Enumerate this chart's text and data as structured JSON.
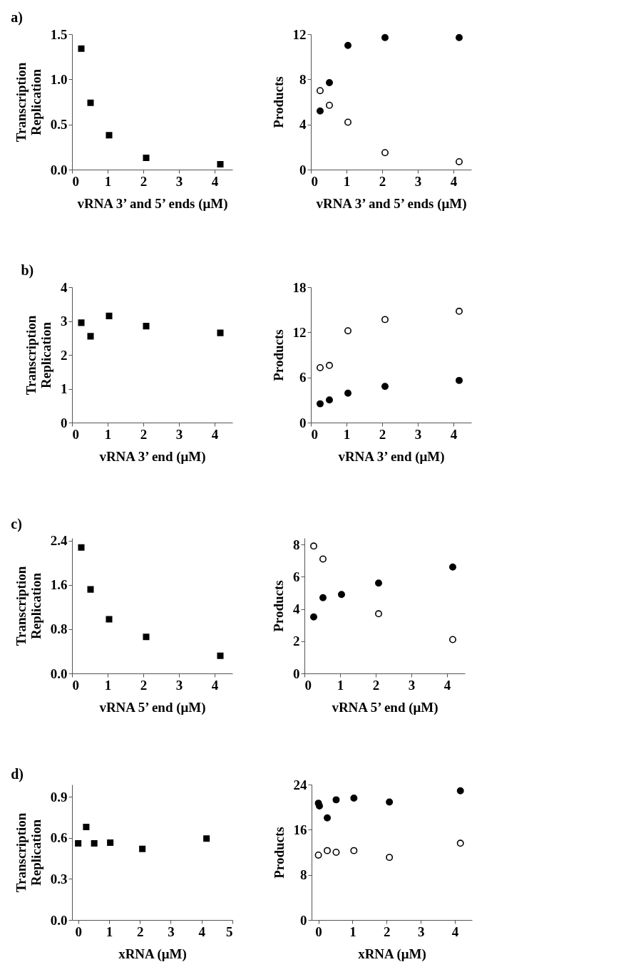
{
  "chart_data": [
    {
      "type": "scatter",
      "title": "a)",
      "xlabel": "vRNA 3’ and 5’ ends (μM)",
      "ylabel": "Transcription\nReplication",
      "marker": "square",
      "grid": false,
      "xlim": [
        0,
        4.5
      ],
      "xticks": [
        0,
        1,
        2,
        3,
        4
      ],
      "ylim": [
        0,
        1.5
      ],
      "yticks": [
        {
          "value": 0,
          "label": "0.0"
        },
        {
          "value": 0.5,
          "label": "0.5"
        },
        {
          "value": 1,
          "label": "1.0"
        },
        {
          "value": 1.5,
          "label": "1.5"
        }
      ],
      "x": [
        0.26,
        0.52,
        1.04,
        2.08,
        4.16
      ],
      "series": [
        {
          "color": "#000000",
          "values": [
            1.34,
            0.74,
            0.38,
            0.13,
            0.06
          ]
        }
      ]
    },
    {
      "type": "scatter",
      "xlabel": "vRNA 3’ and 5’ ends (μM)",
      "ylabel": "Products",
      "marker": "circle",
      "grid": false,
      "xlim": [
        0,
        4.5
      ],
      "xticks": [
        0,
        1,
        2,
        3,
        4
      ],
      "ylim": [
        0,
        12
      ],
      "yticks": [
        0,
        4,
        8,
        12
      ],
      "x": [
        0.26,
        0.52,
        1.04,
        2.08,
        4.16
      ],
      "series": [
        {
          "color": "#000000",
          "values": [
            5.2,
            7.7,
            11.0,
            11.7,
            11.7
          ]
        },
        {
          "color": "#ffffff",
          "values": [
            7.0,
            5.7,
            4.2,
            1.5,
            0.7
          ]
        }
      ]
    },
    {
      "type": "scatter",
      "title": "b)",
      "xlabel": "vRNA 3’ end (μM)",
      "ylabel": "Transcription\nReplication",
      "marker": "square",
      "grid": false,
      "xlim": [
        0,
        4.5
      ],
      "xticks": [
        0,
        1,
        2,
        3,
        4
      ],
      "ylim": [
        0,
        4
      ],
      "yticks": [
        0,
        1,
        2,
        3,
        4
      ],
      "x": [
        0.26,
        0.52,
        1.04,
        2.08,
        4.16
      ],
      "series": [
        {
          "color": "#000000",
          "values": [
            2.95,
            2.55,
            3.15,
            2.85,
            2.65
          ]
        }
      ]
    },
    {
      "type": "scatter",
      "xlabel": "vRNA 3’ end (μM)",
      "ylabel": "Products",
      "marker": "circle",
      "grid": false,
      "xlim": [
        0,
        4.5
      ],
      "xticks": [
        0,
        1,
        2,
        3,
        4
      ],
      "ylim": [
        0,
        18
      ],
      "yticks": [
        0,
        6,
        12,
        18
      ],
      "x": [
        0.26,
        0.52,
        1.04,
        2.08,
        4.16
      ],
      "series": [
        {
          "color": "#000000",
          "values": [
            2.5,
            3.0,
            3.9,
            4.8,
            5.6
          ]
        },
        {
          "color": "#ffffff",
          "values": [
            7.3,
            7.6,
            12.2,
            13.7,
            14.8
          ]
        }
      ]
    },
    {
      "type": "scatter",
      "title": "c)",
      "xlabel": "vRNA 5’ end (μM)",
      "ylabel": "Transcription\nReplication",
      "marker": "square",
      "grid": false,
      "xlim": [
        0,
        4.5
      ],
      "xticks": [
        0,
        1,
        2,
        3,
        4
      ],
      "ylim": [
        0,
        2.45
      ],
      "yticks": [
        {
          "value": 0,
          "label": "0.0"
        },
        {
          "value": 0.8,
          "label": "0.8"
        },
        {
          "value": 1.6,
          "label": "1.6"
        },
        {
          "value": 2.4,
          "label": "2.4"
        }
      ],
      "x": [
        0.26,
        0.52,
        1.04,
        2.08,
        4.16
      ],
      "series": [
        {
          "color": "#000000",
          "values": [
            2.28,
            1.52,
            0.98,
            0.66,
            0.32
          ]
        }
      ]
    },
    {
      "type": "scatter",
      "xlabel": "vRNA 5’ end (μM)",
      "ylabel": "Products",
      "marker": "circle",
      "grid": false,
      "xlim": [
        0,
        4.5
      ],
      "xticks": [
        0,
        1,
        2,
        3,
        4
      ],
      "ylim": [
        0,
        8.4
      ],
      "yticks": [
        0,
        2,
        4,
        6,
        8
      ],
      "x": [
        0.26,
        0.52,
        1.04,
        2.08,
        4.16
      ],
      "series": [
        {
          "color": "#000000",
          "values": [
            3.5,
            4.7,
            4.9,
            5.6,
            6.6
          ]
        },
        {
          "color": "#ffffff",
          "values": [
            7.9,
            7.1,
            null,
            3.7,
            2.1
          ]
        }
      ]
    },
    {
      "type": "scatter",
      "title": "d)",
      "xlabel": "xRNA (μM)",
      "ylabel": "Transcription\nReplication",
      "marker": "square",
      "grid": false,
      "xlim": [
        -0.2,
        5
      ],
      "xticks": [
        0,
        1,
        2,
        3,
        4,
        5
      ],
      "ylim": [
        0,
        0.99
      ],
      "yticks": [
        {
          "value": 0,
          "label": "0.0"
        },
        {
          "value": 0.3,
          "label": "0.3"
        },
        {
          "value": 0.6,
          "label": "0.6"
        },
        {
          "value": 0.9,
          "label": "0.9"
        }
      ],
      "x": [
        0,
        0.26,
        0.52,
        1.04,
        2.08,
        4.16
      ],
      "series": [
        {
          "color": "#000000",
          "values": [
            0.56,
            0.68,
            0.56,
            0.565,
            0.52,
            0.595
          ]
        }
      ]
    },
    {
      "type": "scatter",
      "xlabel": "xRNA (μM)",
      "ylabel": "Products",
      "marker": "circle",
      "grid": false,
      "xlim": [
        -0.2,
        4.5
      ],
      "xticks": [
        0,
        1,
        2,
        3,
        4
      ],
      "ylim": [
        0,
        24
      ],
      "yticks": [
        0,
        8,
        16,
        24
      ],
      "x": [
        0,
        0.03,
        0.26,
        0.52,
        1.04,
        2.08,
        4.16
      ],
      "series": [
        {
          "color": "#000000",
          "values": [
            20.7,
            20.2,
            18.1,
            21.3,
            21.6,
            20.9,
            22.9
          ]
        },
        {
          "color": "#ffffff",
          "values": [
            11.5,
            null,
            12.3,
            12.0,
            12.3,
            11.1,
            13.6
          ]
        }
      ]
    }
  ]
}
